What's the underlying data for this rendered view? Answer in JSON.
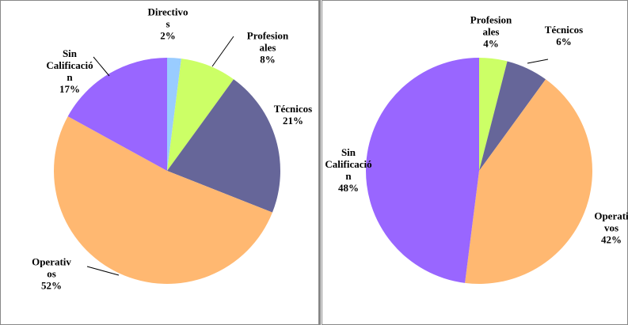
{
  "chart_data": [
    {
      "type": "pie",
      "categories": [
        "Directivos",
        "Profesionales",
        "Técnicos",
        "Operativos",
        "Sin Calificación"
      ],
      "values": [
        2,
        8,
        21,
        52,
        17
      ],
      "value_labels": [
        "2%",
        "8%",
        "21%",
        "52%",
        "17%"
      ],
      "colors": [
        "#99ccff",
        "#ccff66",
        "#666699",
        "#ffb871",
        "#9966ff"
      ]
    },
    {
      "type": "pie",
      "categories": [
        "Profesionales",
        "Técnicos",
        "Operativos",
        "Sin Calificación"
      ],
      "values": [
        4,
        6,
        42,
        48
      ],
      "value_labels": [
        "4%",
        "6%",
        "42%",
        "48%"
      ],
      "colors": [
        "#ccff66",
        "#666699",
        "#ffb871",
        "#9966ff"
      ]
    }
  ]
}
